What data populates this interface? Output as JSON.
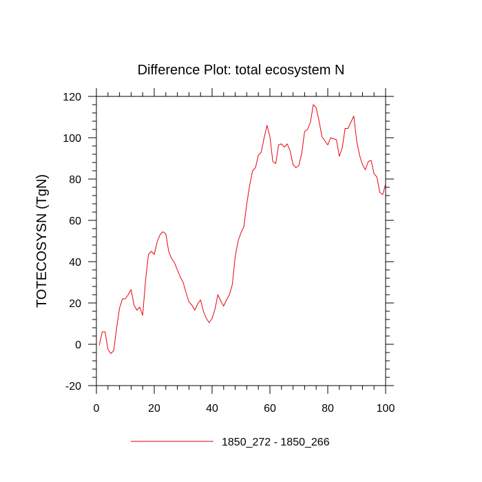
{
  "chart_data": {
    "type": "line",
    "title": "Difference Plot: total ecosystem N",
    "ylabel": "TOTECOSYSN  (TgN)",
    "xlabel": "",
    "xlim": [
      0,
      100
    ],
    "ylim": [
      -20,
      120
    ],
    "x_ticks": [
      0,
      20,
      40,
      60,
      80,
      100
    ],
    "y_ticks": [
      -20,
      0,
      20,
      40,
      60,
      80,
      100,
      120
    ],
    "x_minor_step": 4,
    "y_minor_step": 4,
    "legend_position": "bottom-center",
    "series": [
      {
        "name": "1850_272 - 1850_266",
        "color": "#e8000b",
        "x": [
          1,
          2,
          3,
          4,
          5,
          6,
          7,
          8,
          9,
          10,
          11,
          12,
          13,
          14,
          15,
          16,
          17,
          18,
          19,
          20,
          21,
          22,
          23,
          24,
          25,
          26,
          27,
          28,
          29,
          30,
          31,
          32,
          33,
          34,
          35,
          36,
          37,
          38,
          39,
          40,
          41,
          42,
          43,
          44,
          45,
          46,
          47,
          48,
          49,
          50,
          51,
          52,
          53,
          54,
          55,
          56,
          57,
          58,
          59,
          60,
          61,
          62,
          63,
          64,
          65,
          66,
          67,
          68,
          69,
          70,
          71,
          72,
          73,
          74,
          75,
          76,
          77,
          78,
          79,
          80,
          81,
          82,
          83,
          84,
          85,
          86,
          87,
          88,
          89,
          90,
          91,
          92,
          93,
          94,
          95,
          96,
          97,
          98,
          99,
          100
        ],
        "y": [
          -0.5,
          6,
          6,
          -2.5,
          -4.5,
          -3,
          8,
          17.5,
          22,
          22,
          24,
          26.5,
          19,
          16.5,
          18,
          14,
          31,
          43.5,
          45,
          43.5,
          49.5,
          53,
          54.5,
          53.5,
          45,
          41.5,
          39.5,
          36,
          32.5,
          30,
          25,
          20.5,
          19,
          16.5,
          19.5,
          21.5,
          16,
          12.5,
          10.5,
          12.5,
          17,
          24,
          21,
          18.5,
          21.5,
          24,
          29,
          42.5,
          50,
          54,
          57,
          68,
          77,
          84,
          85.5,
          91.5,
          93,
          100,
          106,
          100.5,
          88.5,
          87.5,
          96.5,
          97,
          95.5,
          97,
          93.5,
          87,
          85.5,
          86.5,
          92.5,
          103,
          104,
          107.5,
          116,
          114.5,
          108,
          100.5,
          98.5,
          96.5,
          100,
          99.5,
          99,
          91,
          95,
          104.5,
          104.5,
          107.5,
          110.5,
          98.5,
          91.5,
          87,
          84.5,
          88.5,
          89,
          82.5,
          81,
          73.5,
          72.5,
          77.5
        ]
      }
    ]
  }
}
